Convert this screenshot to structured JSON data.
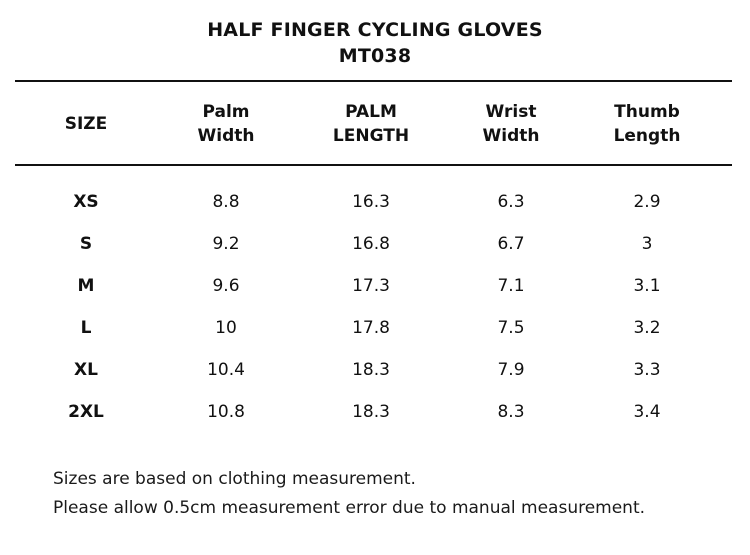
{
  "title": {
    "line1": "HALF FINGER CYCLING GLOVES",
    "line2": "MT038"
  },
  "table": {
    "headers": [
      {
        "line1": "SIZE",
        "line2": ""
      },
      {
        "line1": "Palm",
        "line2": "Width"
      },
      {
        "line1": "PALM",
        "line2": "LENGTH"
      },
      {
        "line1": "Wrist",
        "line2": "Width"
      },
      {
        "line1": "Thumb",
        "line2": "Length"
      }
    ],
    "rows": [
      [
        "XS",
        "8.8",
        "16.3",
        "6.3",
        "2.9"
      ],
      [
        "S",
        "9.2",
        "16.8",
        "6.7",
        "3"
      ],
      [
        "M",
        "9.6",
        "17.3",
        "7.1",
        "3.1"
      ],
      [
        "L",
        "10",
        "17.8",
        "7.5",
        "3.2"
      ],
      [
        "XL",
        "10.4",
        "18.3",
        "7.9",
        "3.3"
      ],
      [
        "2XL",
        "10.8",
        "18.3",
        "8.3",
        "3.4"
      ]
    ]
  },
  "notes": {
    "line1": "Sizes are based on clothing measurement.",
    "line2": "Please allow 0.5cm measurement error due to manual measurement."
  }
}
